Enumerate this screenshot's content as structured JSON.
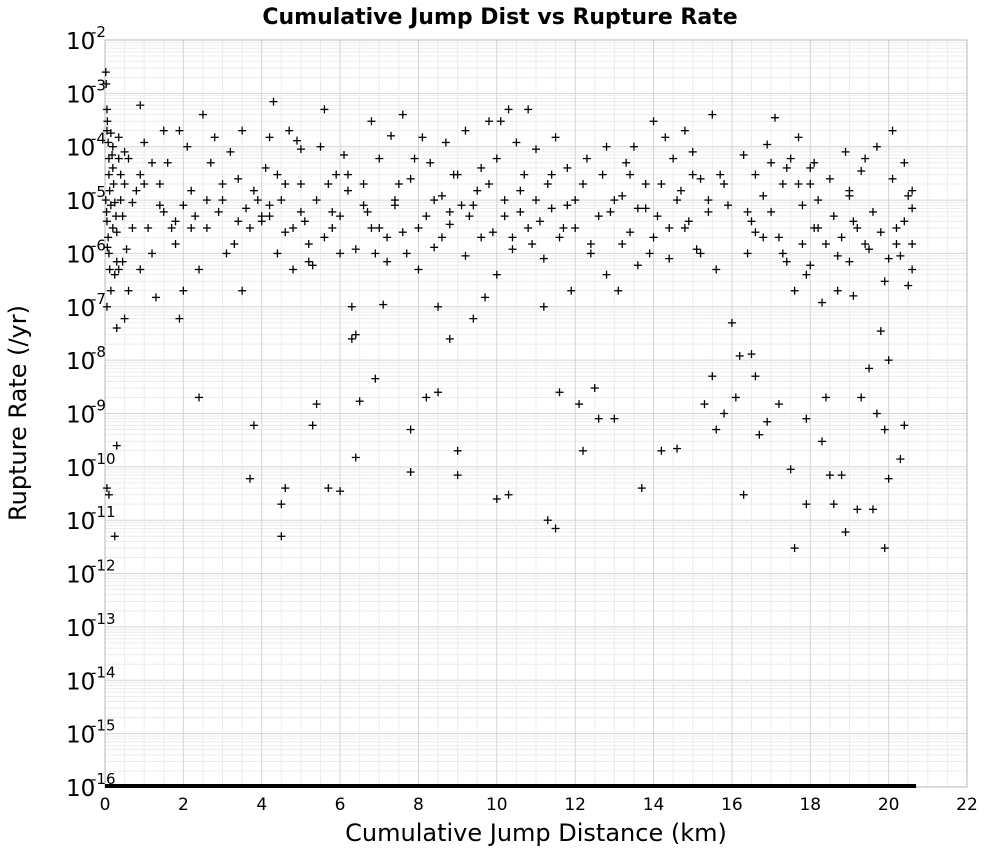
{
  "chart_data": {
    "type": "scatter",
    "title": "Cumulative Jump Dist vs Rupture Rate",
    "xlabel": "Cumulative Jump Distance (km)",
    "ylabel": "Rupture Rate (/yr)",
    "xlim": [
      0,
      22
    ],
    "ylim": [
      1e-16,
      0.01
    ],
    "y_scale": "log",
    "grid": true,
    "x_ticks": [
      "0",
      "2",
      "4",
      "6",
      "8",
      "10",
      "12",
      "14",
      "16",
      "18",
      "20",
      "22"
    ],
    "y_ticks": [
      {
        "base": "10",
        "exp": "-2"
      },
      {
        "base": "10",
        "exp": "-3"
      },
      {
        "base": "10",
        "exp": "-4"
      },
      {
        "base": "10",
        "exp": "-5"
      },
      {
        "base": "10",
        "exp": "-6"
      },
      {
        "base": "10",
        "exp": "-7"
      },
      {
        "base": "10",
        "exp": "-8"
      },
      {
        "base": "10",
        "exp": "-9"
      },
      {
        "base": "10",
        "exp": "-10"
      },
      {
        "base": "10",
        "exp": "-11"
      },
      {
        "base": "10",
        "exp": "-12"
      },
      {
        "base": "10",
        "exp": "-13"
      },
      {
        "base": "10",
        "exp": "-14"
      },
      {
        "base": "10",
        "exp": "-15"
      },
      {
        "base": "10",
        "exp": "-16"
      }
    ],
    "marker": "+",
    "marker_color": "#000000",
    "floor_series": {
      "y": 1e-16,
      "x_from": 0,
      "x_to": 20.7,
      "note": "dense band of points at the lower limit"
    },
    "points": [
      [
        0.02,
        0.0025
      ],
      [
        0.03,
        0.0015
      ],
      [
        0.05,
        0.0005
      ],
      [
        0.05,
        0.0002
      ],
      [
        0.08,
        0.00012
      ],
      [
        0.1,
        6e-05
      ],
      [
        0.1,
        3e-05
      ],
      [
        0.12,
        1.5e-05
      ],
      [
        0.15,
        8e-06
      ],
      [
        0.05,
        4e-06
      ],
      [
        0.08,
        2e-06
      ],
      [
        0.1,
        1e-06
      ],
      [
        0.12,
        5e-07
      ],
      [
        0.15,
        2e-07
      ],
      [
        0.2,
        0.0001
      ],
      [
        0.2,
        4e-05
      ],
      [
        0.22,
        2e-05
      ],
      [
        0.25,
        9e-06
      ],
      [
        0.28,
        5e-06
      ],
      [
        0.3,
        2.5e-06
      ],
      [
        0.3,
        7e-07
      ],
      [
        0.35,
        0.00015
      ],
      [
        0.35,
        6e-05
      ],
      [
        0.4,
        3e-05
      ],
      [
        0.4,
        1e-05
      ],
      [
        0.45,
        5e-06
      ],
      [
        0.5,
        8e-05
      ],
      [
        0.5,
        2e-05
      ],
      [
        0.55,
        1.2e-06
      ],
      [
        0.6,
        2e-07
      ],
      [
        0.25,
        4e-07
      ],
      [
        0.35,
        5e-07
      ],
      [
        0.45,
        7e-07
      ],
      [
        0.02,
        1e-05
      ],
      [
        0.04,
        6e-06
      ],
      [
        0.06,
        0.0003
      ],
      [
        0.06,
        1.3e-06
      ],
      [
        0.15,
        0.00018
      ],
      [
        0.18,
        7e-05
      ],
      [
        0.2,
        3e-06
      ],
      [
        0.05,
        4e-11
      ],
      [
        0.1,
        3e-11
      ],
      [
        0.25,
        5e-12
      ],
      [
        0.3,
        2.5e-10
      ],
      [
        0.3,
        4e-08
      ],
      [
        0.5,
        6e-08
      ],
      [
        0.05,
        1e-07
      ],
      [
        0.9,
        0.0006
      ],
      [
        1.0,
        0.00012
      ],
      [
        1.1,
        3e-06
      ],
      [
        1.2,
        1e-06
      ],
      [
        1.3,
        1.5e-07
      ],
      [
        1.4,
        2e-05
      ],
      [
        1.5,
        6e-06
      ],
      [
        1.6,
        5e-05
      ],
      [
        1.7,
        3e-06
      ],
      [
        1.8,
        1.5e-06
      ],
      [
        1.9,
        0.0002
      ],
      [
        2.0,
        8e-06
      ],
      [
        2.1,
        0.0001
      ],
      [
        1.2,
        5e-05
      ],
      [
        1.5,
        0.0002
      ],
      [
        1.9,
        6e-08
      ],
      [
        2.0,
        2e-07
      ],
      [
        0.9,
        5e-07
      ],
      [
        2.2,
        3e-06
      ],
      [
        2.3,
        5e-06
      ],
      [
        2.4,
        2e-09
      ],
      [
        2.4,
        5e-07
      ],
      [
        2.5,
        0.0004
      ],
      [
        2.6,
        1e-05
      ],
      [
        2.7,
        5e-05
      ],
      [
        2.8,
        0.00015
      ],
      [
        2.9,
        6e-06
      ],
      [
        3.0,
        2e-05
      ],
      [
        3.1,
        1e-06
      ],
      [
        3.2,
        8e-05
      ],
      [
        3.3,
        1.5e-06
      ],
      [
        3.4,
        2.5e-05
      ],
      [
        3.5,
        0.0002
      ],
      [
        3.6,
        7e-06
      ],
      [
        3.7,
        3e-06
      ],
      [
        3.8,
        6e-10
      ],
      [
        3.9,
        1e-05
      ],
      [
        4.0,
        5e-06
      ],
      [
        4.1,
        4e-05
      ],
      [
        4.2,
        0.00015
      ],
      [
        3.5,
        2e-07
      ],
      [
        3.7,
        6e-11
      ],
      [
        4.2,
        8e-06
      ],
      [
        4.3,
        0.0007
      ],
      [
        4.4,
        3e-05
      ],
      [
        4.5,
        1e-05
      ],
      [
        4.6,
        2.5e-06
      ],
      [
        4.6,
        4e-11
      ],
      [
        4.5,
        5e-12
      ],
      [
        4.5,
        2e-11
      ],
      [
        4.7,
        0.0002
      ],
      [
        4.8,
        5e-07
      ],
      [
        4.9,
        0.00013
      ],
      [
        5.0,
        9e-05
      ],
      [
        5.0,
        2e-05
      ],
      [
        5.1,
        4e-06
      ],
      [
        5.2,
        1.5e-06
      ],
      [
        5.3,
        6e-07
      ],
      [
        5.3,
        6e-10
      ],
      [
        5.4,
        1.5e-09
      ],
      [
        5.5,
        0.0001
      ],
      [
        5.6,
        0.0005
      ],
      [
        5.7,
        2e-05
      ],
      [
        5.8,
        6e-06
      ],
      [
        5.9,
        3e-05
      ],
      [
        6.0,
        1e-06
      ],
      [
        6.0,
        3.5e-11
      ],
      [
        5.7,
        4e-11
      ],
      [
        6.1,
        7e-05
      ],
      [
        6.2,
        3e-05
      ],
      [
        6.3,
        1e-07
      ],
      [
        6.3,
        2.5e-08
      ],
      [
        6.4,
        3e-08
      ],
      [
        6.4,
        1.5e-10
      ],
      [
        6.5,
        1.7e-09
      ],
      [
        6.6,
        2e-05
      ],
      [
        6.7,
        6e-06
      ],
      [
        6.8,
        0.0003
      ],
      [
        6.9,
        1e-06
      ],
      [
        6.9,
        4.5e-09
      ],
      [
        7.0,
        6e-05
      ],
      [
        7.1,
        1.1e-07
      ],
      [
        7.2,
        2e-06
      ],
      [
        7.3,
        0.00016
      ],
      [
        7.4,
        8e-06
      ],
      [
        7.5,
        2e-05
      ],
      [
        7.6,
        0.0004
      ],
      [
        7.7,
        1e-06
      ],
      [
        7.8,
        8e-11
      ],
      [
        7.8,
        5e-10
      ],
      [
        7.9,
        6e-05
      ],
      [
        8.0,
        3e-06
      ],
      [
        8.1,
        0.00015
      ],
      [
        8.2,
        2e-09
      ],
      [
        8.3,
        5e-05
      ],
      [
        8.4,
        1e-05
      ],
      [
        8.5,
        2.5e-09
      ],
      [
        8.5,
        1e-07
      ],
      [
        8.6,
        2e-06
      ],
      [
        8.7,
        0.00012
      ],
      [
        8.8,
        6e-06
      ],
      [
        8.8,
        2.5e-08
      ],
      [
        8.9,
        3e-05
      ],
      [
        9.0,
        2e-10
      ],
      [
        9.0,
        7e-11
      ],
      [
        9.1,
        8e-06
      ],
      [
        9.2,
        0.0002
      ],
      [
        9.3,
        5e-06
      ],
      [
        9.4,
        6e-08
      ],
      [
        9.5,
        1.5e-05
      ],
      [
        9.6,
        4e-05
      ],
      [
        9.7,
        1.5e-07
      ],
      [
        9.8,
        0.0003
      ],
      [
        9.9,
        2.5e-06
      ],
      [
        10.0,
        6e-05
      ],
      [
        10.0,
        2.5e-11
      ],
      [
        10.1,
        0.0003
      ],
      [
        10.2,
        1e-05
      ],
      [
        10.3,
        3e-11
      ],
      [
        10.3,
        0.0005
      ],
      [
        10.4,
        2e-06
      ],
      [
        10.5,
        0.00012
      ],
      [
        10.6,
        6e-06
      ],
      [
        10.7,
        3e-05
      ],
      [
        10.8,
        0.0005
      ],
      [
        10.9,
        1.5e-06
      ],
      [
        11.0,
        9e-05
      ],
      [
        11.1,
        4e-06
      ],
      [
        11.2,
        1e-07
      ],
      [
        11.3,
        2e-05
      ],
      [
        11.3,
        1e-11
      ],
      [
        11.5,
        7e-12
      ],
      [
        11.4,
        7e-06
      ],
      [
        11.5,
        0.00015
      ],
      [
        11.6,
        2.5e-09
      ],
      [
        11.7,
        3e-06
      ],
      [
        11.8,
        4e-05
      ],
      [
        11.9,
        2e-07
      ],
      [
        12.0,
        1e-05
      ],
      [
        12.1,
        1.5e-09
      ],
      [
        12.2,
        2e-10
      ],
      [
        12.3,
        6e-05
      ],
      [
        12.4,
        1.5e-06
      ],
      [
        12.5,
        3e-09
      ],
      [
        12.6,
        8e-10
      ],
      [
        12.7,
        3e-05
      ],
      [
        12.8,
        0.0001
      ],
      [
        12.9,
        6e-06
      ],
      [
        13.0,
        8e-10
      ],
      [
        13.1,
        2e-07
      ],
      [
        13.2,
        1.2e-05
      ],
      [
        13.3,
        5e-05
      ],
      [
        13.4,
        2.5e-06
      ],
      [
        13.5,
        0.0001
      ],
      [
        13.6,
        7e-06
      ],
      [
        13.7,
        4e-11
      ],
      [
        13.8,
        2e-05
      ],
      [
        13.9,
        1e-06
      ],
      [
        14.0,
        0.0003
      ],
      [
        14.1,
        5e-06
      ],
      [
        14.2,
        2e-10
      ],
      [
        14.3,
        0.00015
      ],
      [
        14.4,
        3e-06
      ],
      [
        14.5,
        6e-05
      ],
      [
        14.6,
        2.2e-10
      ],
      [
        14.7,
        1.5e-05
      ],
      [
        14.8,
        0.0002
      ],
      [
        14.9,
        4e-06
      ],
      [
        15.0,
        8e-05
      ],
      [
        15.1,
        1.2e-06
      ],
      [
        15.2,
        2.5e-05
      ],
      [
        15.3,
        1.5e-09
      ],
      [
        15.4,
        6e-06
      ],
      [
        15.5,
        0.0004
      ],
      [
        15.5,
        5e-09
      ],
      [
        15.6,
        5e-10
      ],
      [
        15.7,
        3e-05
      ],
      [
        15.8,
        1e-09
      ],
      [
        15.9,
        8e-06
      ],
      [
        16.0,
        5e-08
      ],
      [
        16.1,
        2e-09
      ],
      [
        16.2,
        1.2e-08
      ],
      [
        16.3,
        3e-11
      ],
      [
        16.4,
        6e-06
      ],
      [
        16.5,
        1.3e-08
      ],
      [
        16.6,
        5e-09
      ],
      [
        16.7,
        4e-10
      ],
      [
        16.8,
        2e-06
      ],
      [
        16.9,
        7e-10
      ],
      [
        17.0,
        5e-05
      ],
      [
        17.1,
        0.00035
      ],
      [
        17.2,
        1.5e-09
      ],
      [
        17.3,
        1e-06
      ],
      [
        17.4,
        4e-05
      ],
      [
        17.5,
        9e-11
      ],
      [
        17.6,
        3e-12
      ],
      [
        17.6,
        2e-07
      ],
      [
        17.7,
        2e-05
      ],
      [
        17.8,
        8e-06
      ],
      [
        17.9,
        2e-11
      ],
      [
        17.9,
        8e-10
      ],
      [
        18.0,
        4e-05
      ],
      [
        18.1,
        3e-06
      ],
      [
        18.2,
        1e-05
      ],
      [
        18.3,
        3e-10
      ],
      [
        18.4,
        2e-09
      ],
      [
        18.5,
        7e-11
      ],
      [
        18.6,
        2e-11
      ],
      [
        18.7,
        2e-07
      ],
      [
        18.8,
        7e-11
      ],
      [
        18.9,
        6e-12
      ],
      [
        19.0,
        1.5e-05
      ],
      [
        19.1,
        4e-06
      ],
      [
        19.2,
        1.6e-11
      ],
      [
        19.3,
        2e-09
      ],
      [
        19.4,
        6e-05
      ],
      [
        19.5,
        7e-09
      ],
      [
        19.6,
        1.6e-11
      ],
      [
        19.7,
        1e-09
      ],
      [
        19.8,
        3.5e-08
      ],
      [
        19.9,
        5e-10
      ],
      [
        19.9,
        3e-12
      ],
      [
        20.0,
        1e-08
      ],
      [
        20.0,
        6e-11
      ],
      [
        20.1,
        0.0002
      ],
      [
        20.2,
        3e-06
      ],
      [
        20.3,
        1.4e-10
      ],
      [
        20.4,
        6e-10
      ],
      [
        20.5,
        1.2e-05
      ],
      [
        20.6,
        5e-07
      ],
      [
        16.4,
        1e-06
      ],
      [
        16.6,
        2.5e-06
      ],
      [
        16.8,
        1.2e-05
      ],
      [
        17.0,
        6e-06
      ],
      [
        17.2,
        2e-06
      ],
      [
        17.4,
        7e-07
      ],
      [
        17.8,
        1.5e-06
      ],
      [
        18.0,
        6e-07
      ],
      [
        18.2,
        3e-06
      ],
      [
        18.4,
        1.5e-06
      ],
      [
        18.6,
        5e-06
      ],
      [
        18.8,
        2e-06
      ],
      [
        19.0,
        7e-07
      ],
      [
        19.2,
        3e-06
      ],
      [
        19.4,
        1.5e-06
      ],
      [
        19.6,
        6e-06
      ],
      [
        19.8,
        2.5e-06
      ],
      [
        20.0,
        8e-07
      ],
      [
        20.2,
        1.5e-06
      ],
      [
        20.4,
        4e-06
      ],
      [
        20.6,
        1.5e-06
      ],
      [
        20.6,
        7e-06
      ],
      [
        20.5,
        2.5e-07
      ],
      [
        20.3,
        9e-07
      ],
      [
        19.9,
        3e-07
      ],
      [
        19.5,
        1.2e-06
      ],
      [
        19.1,
        1.6e-07
      ],
      [
        18.7,
        9e-07
      ],
      [
        18.3,
        1.2e-07
      ],
      [
        17.9,
        4e-07
      ],
      [
        16.3,
        7e-05
      ],
      [
        16.6,
        3e-05
      ],
      [
        16.9,
        0.00011
      ],
      [
        17.3,
        2e-05
      ],
      [
        17.7,
        0.00015
      ],
      [
        18.1,
        5e-05
      ],
      [
        18.5,
        2.5e-05
      ],
      [
        18.9,
        8e-05
      ],
      [
        19.3,
        3.5e-05
      ],
      [
        19.7,
        0.0001
      ],
      [
        20.1,
        2.5e-05
      ],
      [
        20.4,
        5e-05
      ],
      [
        20.6,
        1.5e-05
      ],
      [
        19.0,
        1.2e-05
      ],
      [
        18.0,
        2e-05
      ],
      [
        17.5,
        6e-05
      ],
      [
        16.5,
        4e-06
      ],
      [
        15.8,
        2e-05
      ],
      [
        15.4,
        1e-05
      ],
      [
        15.0,
        3e-05
      ],
      [
        14.6,
        1e-05
      ],
      [
        14.2,
        2e-05
      ],
      [
        13.8,
        7e-06
      ],
      [
        13.4,
        3e-05
      ],
      [
        13.0,
        1e-05
      ],
      [
        12.6,
        5e-06
      ],
      [
        12.2,
        2e-05
      ],
      [
        11.8,
        8e-06
      ],
      [
        11.4,
        3e-05
      ],
      [
        11.0,
        1e-05
      ],
      [
        10.6,
        1.5e-05
      ],
      [
        10.2,
        5e-06
      ],
      [
        9.8,
        2e-05
      ],
      [
        9.4,
        8e-06
      ],
      [
        9.0,
        3e-05
      ],
      [
        8.6,
        1.2e-05
      ],
      [
        8.2,
        5e-06
      ],
      [
        7.8,
        2.5e-05
      ],
      [
        7.4,
        1e-05
      ],
      [
        7.0,
        3e-06
      ],
      [
        6.6,
        8e-06
      ],
      [
        6.2,
        1.5e-05
      ],
      [
        5.8,
        3e-06
      ],
      [
        5.4,
        1e-05
      ],
      [
        5.0,
        6e-06
      ],
      [
        4.6,
        2e-05
      ],
      [
        4.2,
        5e-06
      ],
      [
        3.8,
        1.5e-05
      ],
      [
        3.4,
        4e-06
      ],
      [
        3.0,
        1e-05
      ],
      [
        2.6,
        3e-06
      ],
      [
        2.2,
        1.5e-05
      ],
      [
        1.8,
        4e-06
      ],
      [
        1.4,
        8e-06
      ],
      [
        1.0,
        2e-05
      ],
      [
        0.7,
        3e-06
      ],
      [
        0.8,
        1.5e-05
      ],
      [
        0.6,
        6e-05
      ],
      [
        0.7,
        9e-06
      ],
      [
        0.9,
        3e-05
      ],
      [
        12.0,
        3e-06
      ],
      [
        12.4,
        1e-06
      ],
      [
        12.8,
        4e-07
      ],
      [
        13.2,
        1.5e-06
      ],
      [
        13.6,
        6e-07
      ],
      [
        14.0,
        2e-06
      ],
      [
        14.4,
        8e-07
      ],
      [
        14.8,
        3e-06
      ],
      [
        15.2,
        1e-06
      ],
      [
        15.6,
        5e-07
      ],
      [
        11.6,
        2e-06
      ],
      [
        11.2,
        8e-07
      ],
      [
        10.8,
        3e-06
      ],
      [
        10.4,
        1.2e-06
      ],
      [
        10.0,
        4e-07
      ],
      [
        9.6,
        2e-06
      ],
      [
        9.2,
        9e-07
      ],
      [
        8.8,
        3.5e-06
      ],
      [
        8.4,
        1.3e-06
      ],
      [
        8.0,
        5e-07
      ],
      [
        7.6,
        2.5e-06
      ],
      [
        7.2,
        7e-07
      ],
      [
        6.8,
        3e-06
      ],
      [
        6.4,
        1.2e-06
      ],
      [
        6.0,
        5e-06
      ],
      [
        5.6,
        2e-06
      ],
      [
        5.2,
        7e-07
      ],
      [
        4.8,
        3e-06
      ],
      [
        4.4,
        1e-06
      ],
      [
        4.0,
        4e-06
      ]
    ]
  }
}
